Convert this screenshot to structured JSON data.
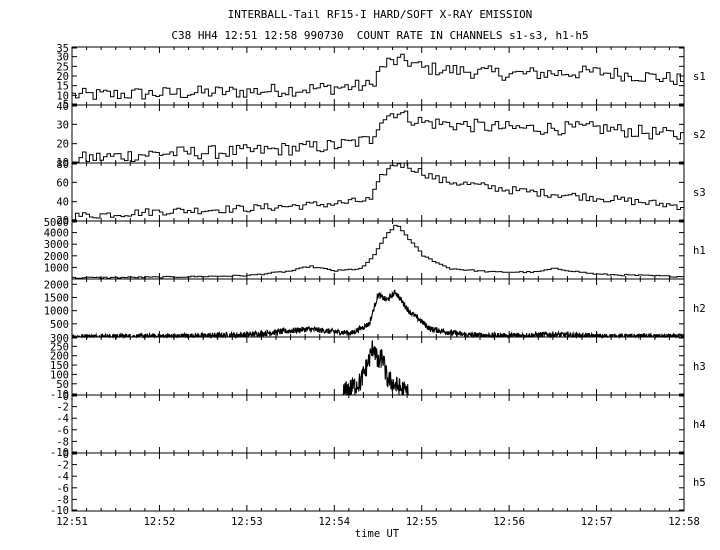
{
  "chart_data": {
    "type": "line",
    "title": "INTERBALL-Tail RF15-I HARD/SOFT X-RAY EMISSION",
    "subtitle": "C38 HH4 12:51 12:58 990730  COUNT RATE IN CHANNELS s1-s3, h1-h5",
    "xlabel": "time UT",
    "x_ticks": [
      "12:51",
      "12:52",
      "12:53",
      "12:54",
      "12:55",
      "12:56",
      "12:57",
      "12:58"
    ],
    "xlim_minutes": [
      0,
      7
    ],
    "grid": false,
    "panels": [
      {
        "name": "s1",
        "ylim": [
          5,
          35
        ],
        "yticks": [
          35,
          30,
          25,
          20,
          15,
          10,
          5
        ],
        "profile": [
          [
            0,
            10
          ],
          [
            1,
            11
          ],
          [
            2,
            12
          ],
          [
            2.5,
            13
          ],
          [
            3,
            14
          ],
          [
            3.4,
            15
          ],
          [
            3.5,
            23
          ],
          [
            3.6,
            27
          ],
          [
            3.8,
            28
          ],
          [
            4.0,
            24
          ],
          [
            5.0,
            21
          ],
          [
            6.0,
            22
          ],
          [
            7.0,
            18
          ]
        ],
        "noise": 3.5
      },
      {
        "name": "s2",
        "ylim": [
          10,
          40
        ],
        "yticks": [
          40,
          30,
          20,
          10
        ],
        "profile": [
          [
            0,
            12
          ],
          [
            1,
            15
          ],
          [
            2,
            16
          ],
          [
            3,
            19
          ],
          [
            3.4,
            22
          ],
          [
            3.5,
            32
          ],
          [
            3.7,
            37
          ],
          [
            3.8,
            34
          ],
          [
            4.0,
            31
          ],
          [
            5.0,
            28
          ],
          [
            6.0,
            28
          ],
          [
            7.0,
            24
          ]
        ],
        "noise": 3.5
      },
      {
        "name": "s3",
        "ylim": [
          20,
          80
        ],
        "yticks": [
          80,
          60,
          40,
          20
        ],
        "profile": [
          [
            0,
            25
          ],
          [
            1,
            30
          ],
          [
            2,
            33
          ],
          [
            3,
            38
          ],
          [
            3.4,
            42
          ],
          [
            3.55,
            70
          ],
          [
            3.7,
            80
          ],
          [
            3.85,
            76
          ],
          [
            4.2,
            62
          ],
          [
            5.0,
            52
          ],
          [
            6.0,
            44
          ],
          [
            7.0,
            35
          ]
        ],
        "noise": 4
      },
      {
        "name": "h1",
        "ylim": [
          0,
          5000
        ],
        "yticks": [
          5000,
          4000,
          3000,
          2000,
          1000
        ],
        "profile": [
          [
            0,
            100
          ],
          [
            1,
            150
          ],
          [
            2,
            300
          ],
          [
            2.5,
            700
          ],
          [
            2.7,
            1100
          ],
          [
            3.0,
            700
          ],
          [
            3.3,
            900
          ],
          [
            3.45,
            2200
          ],
          [
            3.6,
            4000
          ],
          [
            3.7,
            4700
          ],
          [
            3.8,
            3800
          ],
          [
            4.0,
            2000
          ],
          [
            4.3,
            900
          ],
          [
            4.8,
            600
          ],
          [
            5.3,
            600
          ],
          [
            5.5,
            900
          ],
          [
            6.0,
            400
          ],
          [
            7.0,
            200
          ]
        ],
        "noise": 60
      },
      {
        "name": "h2",
        "ylim": [
          0,
          2200
        ],
        "yticks": [
          2000,
          1500,
          1000,
          500
        ],
        "profile": [
          [
            0,
            10
          ],
          [
            1,
            20
          ],
          [
            2,
            80
          ],
          [
            2.7,
            300
          ],
          [
            3.0,
            200
          ],
          [
            3.2,
            150
          ],
          [
            3.4,
            500
          ],
          [
            3.5,
            1600
          ],
          [
            3.6,
            1400
          ],
          [
            3.7,
            1700
          ],
          [
            3.85,
            1000
          ],
          [
            4.1,
            300
          ],
          [
            4.5,
            80
          ],
          [
            5.0,
            40
          ],
          [
            5.5,
            100
          ],
          [
            6.0,
            20
          ],
          [
            7.0,
            10
          ]
        ],
        "noise": 110
      },
      {
        "name": "h3",
        "ylim": [
          -10,
          300
        ],
        "yticks": [
          300,
          250,
          200,
          150,
          100,
          50,
          -10
        ],
        "x_range": [
          3.1,
          3.85
        ],
        "profile": [
          [
            3.1,
            0
          ],
          [
            3.3,
            60
          ],
          [
            3.4,
            180
          ],
          [
            3.45,
            260
          ],
          [
            3.5,
            150
          ],
          [
            3.55,
            200
          ],
          [
            3.6,
            80
          ],
          [
            3.7,
            40
          ],
          [
            3.85,
            0
          ]
        ],
        "noise": 55
      },
      {
        "name": "h4",
        "ylim": [
          -10,
          0
        ],
        "yticks": [
          -10,
          -8,
          -6,
          -4,
          -2,
          0
        ],
        "profile": [],
        "noise": 0
      },
      {
        "name": "h5",
        "ylim": [
          -10,
          0
        ],
        "yticks": [
          -10,
          -8,
          -6,
          -4,
          -2,
          0
        ],
        "profile": [],
        "noise": 0
      }
    ]
  }
}
